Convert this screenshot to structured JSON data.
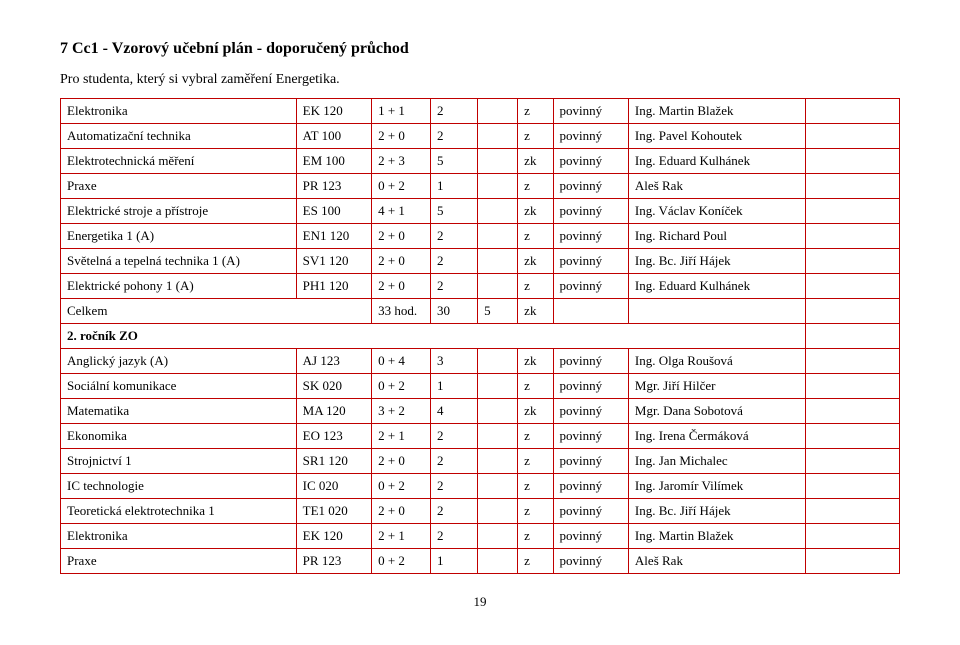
{
  "title": "7  Cc1 - Vzorový učební plán - doporučený průchod",
  "subtitle": "Pro studenta, který si vybral zaměření Energetika.",
  "page_number": "19",
  "summary": {
    "label": "Celkem",
    "hours": "33 hod.",
    "n1": "30",
    "n2": "5",
    "ex": "zk"
  },
  "section2": {
    "label": "2. ročník ZO"
  },
  "rows1": [
    {
      "name": "Elektronika",
      "code": "EK 120",
      "hours": "1 + 1",
      "n1": "2",
      "n2": "",
      "ex": "z",
      "mand": "povinný",
      "teacher": "Ing. Martin Blažek"
    },
    {
      "name": "Automatizační technika",
      "code": "AT 100",
      "hours": "2 + 0",
      "n1": "2",
      "n2": "",
      "ex": "z",
      "mand": "povinný",
      "teacher": "Ing. Pavel Kohoutek"
    },
    {
      "name": "Elektrotechnická měření",
      "code": "EM 100",
      "hours": "2 + 3",
      "n1": "5",
      "n2": "",
      "ex": "zk",
      "mand": "povinný",
      "teacher": "Ing. Eduard Kulhánek"
    },
    {
      "name": "Praxe",
      "code": "PR 123",
      "hours": "0 + 2",
      "n1": "1",
      "n2": "",
      "ex": "z",
      "mand": "povinný",
      "teacher": "Aleš Rak"
    },
    {
      "name": "Elektrické stroje a přístroje",
      "code": "ES 100",
      "hours": "4 + 1",
      "n1": "5",
      "n2": "",
      "ex": "zk",
      "mand": "povinný",
      "teacher": "Ing. Václav Koníček"
    },
    {
      "name": "Energetika 1  (A)",
      "code": "EN1 120",
      "hours": "2 + 0",
      "n1": "2",
      "n2": "",
      "ex": "z",
      "mand": "povinný",
      "teacher": "Ing. Richard Poul"
    },
    {
      "name": "Světelná a tepelná technika 1  (A)",
      "code": "SV1 120",
      "hours": "2 + 0",
      "n1": "2",
      "n2": "",
      "ex": "zk",
      "mand": "povinný",
      "teacher": "Ing. Bc. Jiří Hájek"
    },
    {
      "name": "Elektrické pohony 1  (A)",
      "code": "PH1 120",
      "hours": "2 + 0",
      "n1": "2",
      "n2": "",
      "ex": "z",
      "mand": "povinný",
      "teacher": "Ing. Eduard Kulhánek"
    }
  ],
  "rows2": [
    {
      "name": "Anglický jazyk  (A)",
      "code": "AJ 123",
      "hours": "0 + 4",
      "n1": "3",
      "n2": "",
      "ex": "zk",
      "mand": "povinný",
      "teacher": "Ing. Olga Roušová"
    },
    {
      "name": "Sociální komunikace",
      "code": "SK 020",
      "hours": "0 + 2",
      "n1": "1",
      "n2": "",
      "ex": "z",
      "mand": "povinný",
      "teacher": "Mgr. Jiří Hilčer"
    },
    {
      "name": "Matematika",
      "code": "MA 120",
      "hours": "3 + 2",
      "n1": "4",
      "n2": "",
      "ex": "zk",
      "mand": "povinný",
      "teacher": "Mgr. Dana Sobotová"
    },
    {
      "name": "Ekonomika",
      "code": "EO 123",
      "hours": "2 + 1",
      "n1": "2",
      "n2": "",
      "ex": "z",
      "mand": "povinný",
      "teacher": "Ing. Irena Čermáková"
    },
    {
      "name": "Strojnictví 1",
      "code": "SR1 120",
      "hours": "2 + 0",
      "n1": "2",
      "n2": "",
      "ex": "z",
      "mand": "povinný",
      "teacher": "Ing. Jan Michalec"
    },
    {
      "name": "IC technologie",
      "code": "IC 020",
      "hours": "0 + 2",
      "n1": "2",
      "n2": "",
      "ex": "z",
      "mand": "povinný",
      "teacher": "Ing. Jaromír Vilímek"
    },
    {
      "name": "Teoretická elektrotechnika 1",
      "code": "TE1 020",
      "hours": "2 + 0",
      "n1": "2",
      "n2": "",
      "ex": "z",
      "mand": "povinný",
      "teacher": "Ing. Bc. Jiří Hájek"
    },
    {
      "name": "Elektronika",
      "code": "EK 120",
      "hours": "2 + 1",
      "n1": "2",
      "n2": "",
      "ex": "z",
      "mand": "povinný",
      "teacher": "Ing. Martin Blažek"
    },
    {
      "name": "Praxe",
      "code": "PR 123",
      "hours": "0 + 2",
      "n1": "1",
      "n2": "",
      "ex": "z",
      "mand": "povinný",
      "teacher": "Aleš Rak"
    }
  ]
}
